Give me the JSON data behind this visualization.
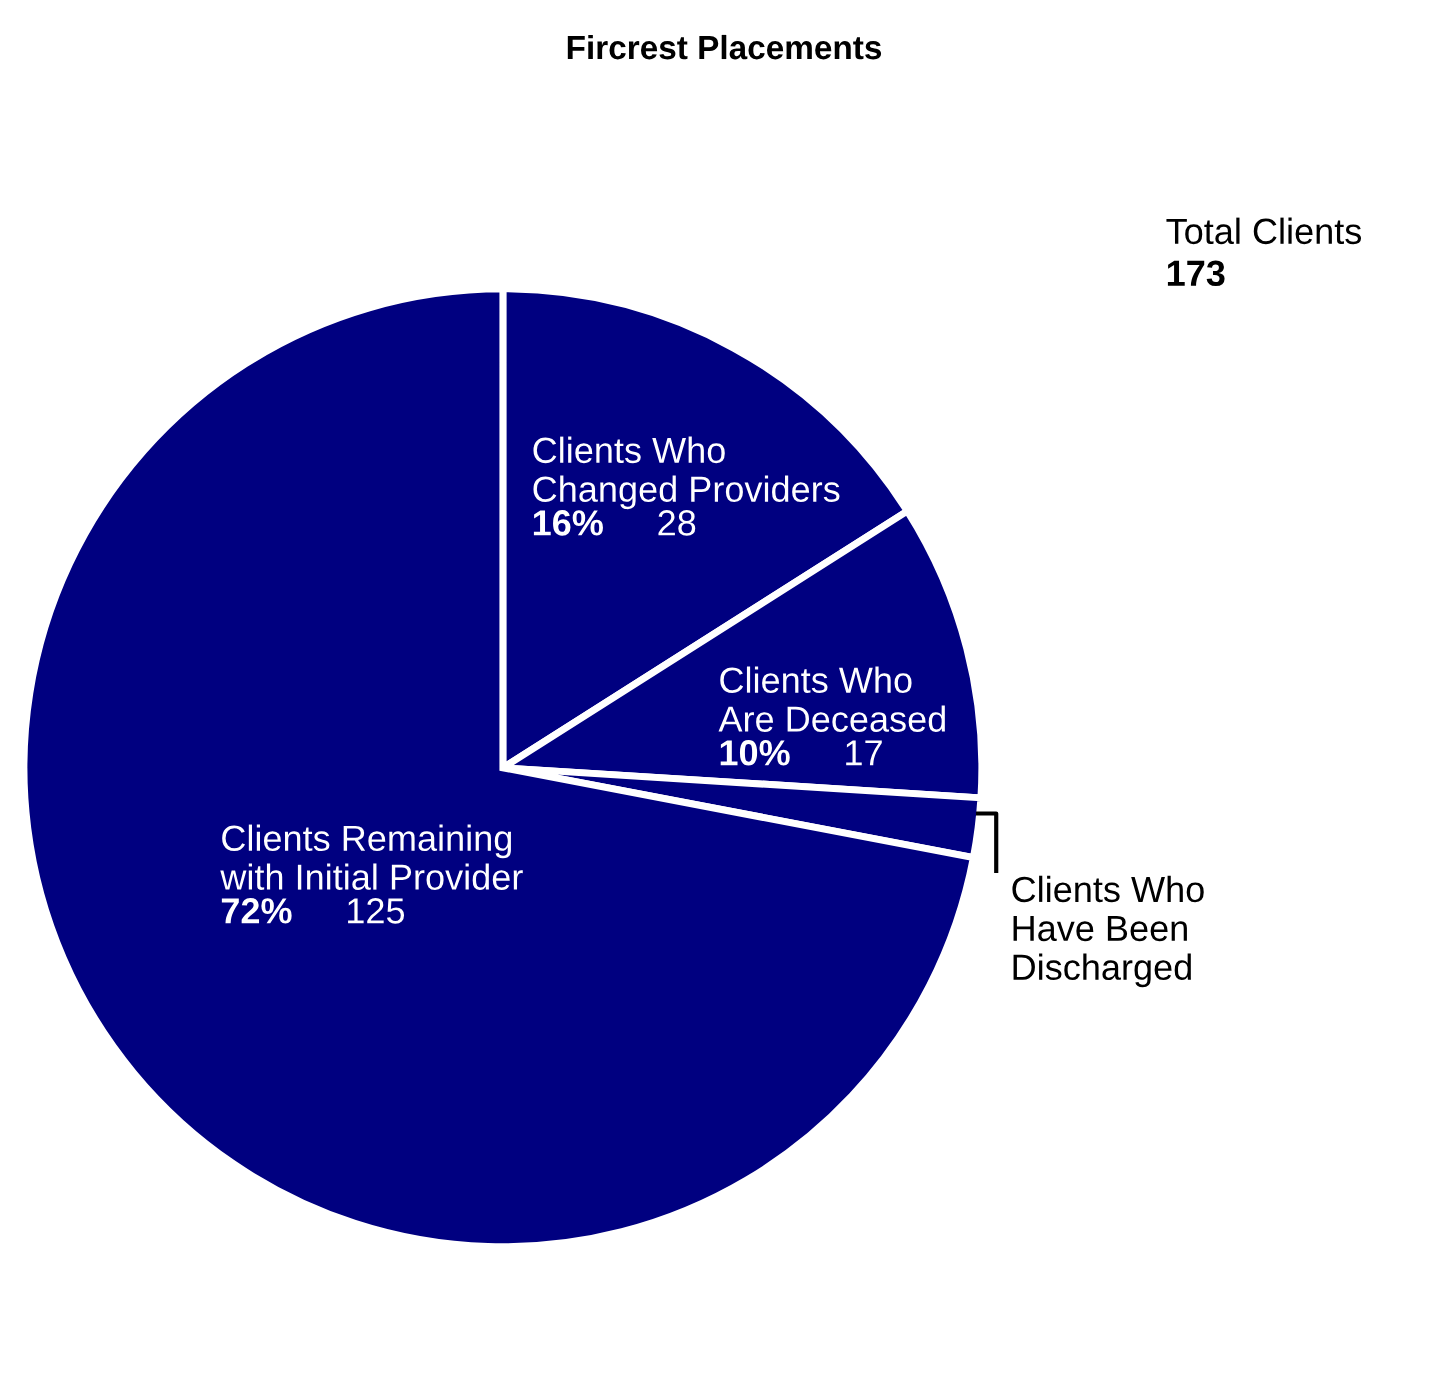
{
  "chart_data": {
    "type": "pie",
    "title": "Fircrest Placements",
    "categories": [
      "Clients Who\nChanged Providers",
      "Clients Who\nAre Deceased",
      "Clients Who\nHave Been\nDischarged",
      "Clients Remaining\nwith Initial Provider"
    ],
    "values": [
      16,
      10,
      2,
      72
    ],
    "value_labels": [
      "16%  28",
      "10%  17",
      null,
      "72%  125"
    ],
    "colors": [
      "#000080",
      "#000080",
      "#000080",
      "#000080"
    ],
    "annotations": [
      "Total Clients",
      "173"
    ],
    "legend": false
  }
}
